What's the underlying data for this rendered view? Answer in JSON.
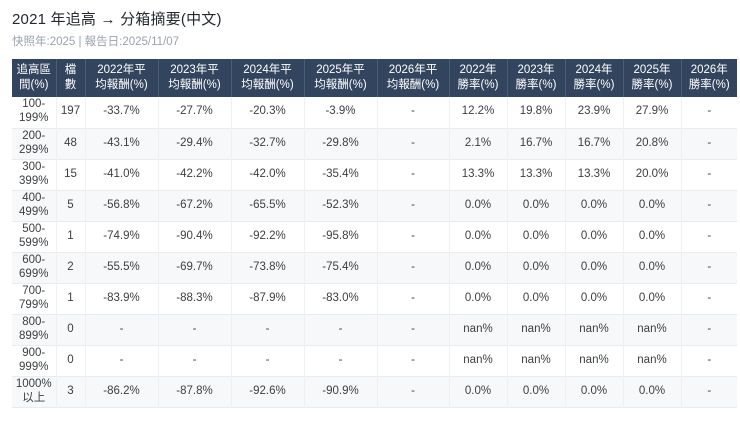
{
  "page": {
    "title": "2021 年追高 → 分箱摘要(中文)",
    "subtitle": "快照年:2025 | 報告日:2025/11/07"
  },
  "colors": {
    "table_header_bg": "#33455e",
    "table_header_text": "#ffffff",
    "row_stripe": "#f7f8fa",
    "body_text": "#3c4043",
    "subtitle_text": "#9aa3ad"
  },
  "table": {
    "columns": [
      "追高區\n間(%)",
      "檔\n數",
      "2022年平\n均報酬(%)",
      "2023年平\n均報酬(%)",
      "2024年平\n均報酬(%)",
      "2025年平\n均報酬(%)",
      "2026年平\n均報酬(%)",
      "2022年\n勝率(%)",
      "2023年\n勝率(%)",
      "2024年\n勝率(%)",
      "2025年\n勝率(%)",
      "2026年\n勝率(%)"
    ],
    "rows": [
      [
        "100-\n199%",
        "197",
        "-33.7%",
        "-27.7%",
        "-20.3%",
        "-3.9%",
        "-",
        "12.2%",
        "19.8%",
        "23.9%",
        "27.9%",
        "-"
      ],
      [
        "200-\n299%",
        "48",
        "-43.1%",
        "-29.4%",
        "-32.7%",
        "-29.8%",
        "-",
        "2.1%",
        "16.7%",
        "16.7%",
        "20.8%",
        "-"
      ],
      [
        "300-\n399%",
        "15",
        "-41.0%",
        "-42.2%",
        "-42.0%",
        "-35.4%",
        "-",
        "13.3%",
        "13.3%",
        "13.3%",
        "20.0%",
        "-"
      ],
      [
        "400-\n499%",
        "5",
        "-56.8%",
        "-67.2%",
        "-65.5%",
        "-52.3%",
        "-",
        "0.0%",
        "0.0%",
        "0.0%",
        "0.0%",
        "-"
      ],
      [
        "500-\n599%",
        "1",
        "-74.9%",
        "-90.4%",
        "-92.2%",
        "-95.8%",
        "-",
        "0.0%",
        "0.0%",
        "0.0%",
        "0.0%",
        "-"
      ],
      [
        "600-\n699%",
        "2",
        "-55.5%",
        "-69.7%",
        "-73.8%",
        "-75.4%",
        "-",
        "0.0%",
        "0.0%",
        "0.0%",
        "0.0%",
        "-"
      ],
      [
        "700-\n799%",
        "1",
        "-83.9%",
        "-88.3%",
        "-87.9%",
        "-83.0%",
        "-",
        "0.0%",
        "0.0%",
        "0.0%",
        "0.0%",
        "-"
      ],
      [
        "800-\n899%",
        "0",
        "-",
        "-",
        "-",
        "-",
        "-",
        "nan%",
        "nan%",
        "nan%",
        "nan%",
        "-"
      ],
      [
        "900-\n999%",
        "0",
        "-",
        "-",
        "-",
        "-",
        "-",
        "nan%",
        "nan%",
        "nan%",
        "nan%",
        "-"
      ],
      [
        "1000%\n以上",
        "3",
        "-86.2%",
        "-87.8%",
        "-92.6%",
        "-90.9%",
        "-",
        "0.0%",
        "0.0%",
        "0.0%",
        "0.0%",
        "-"
      ]
    ]
  }
}
